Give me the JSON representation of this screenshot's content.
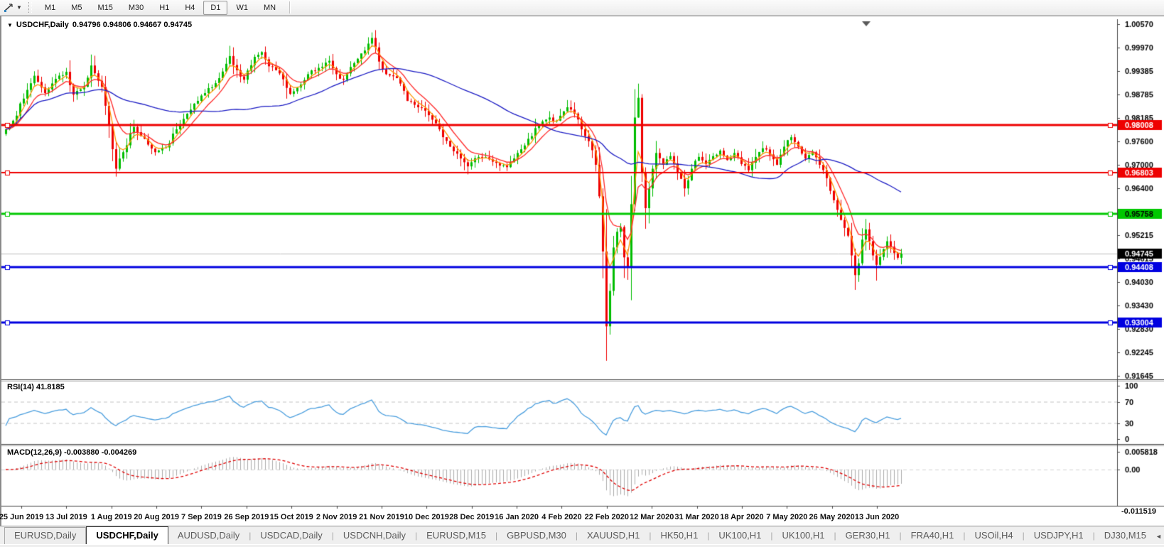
{
  "toolbar": {
    "tool_icon": "line-tool-icon",
    "dropdown_icon": "chevron-down",
    "timeframes": [
      {
        "label": "M1",
        "active": false
      },
      {
        "label": "M5",
        "active": false
      },
      {
        "label": "M15",
        "active": false
      },
      {
        "label": "M30",
        "active": false
      },
      {
        "label": "H1",
        "active": false
      },
      {
        "label": "H4",
        "active": false
      },
      {
        "label": "D1",
        "active": true
      },
      {
        "label": "W1",
        "active": false
      },
      {
        "label": "MN",
        "active": false
      }
    ]
  },
  "chart": {
    "symbol_timeframe": "USDCHF,Daily",
    "ohlc_readout": "0.94796 0.94806 0.94667 0.94745"
  },
  "indicators": {
    "rsi_label": "RSI(14) 41.8185",
    "macd_label": "MACD(12,26,9) -0.003880 -0.004269"
  },
  "chart_data": {
    "type": "candlestick",
    "symbol": "USDCHF",
    "timeframe": "Daily",
    "ohlc_readout": {
      "open": 0.94796,
      "high": 0.94806,
      "low": 0.94667,
      "close": 0.94745
    },
    "y_axis_range": [
      0.91554,
      1.00696
    ],
    "y_ticks": [
      "1.00570",
      "0.99970",
      "0.99385",
      "0.98785",
      "0.98185",
      "0.97600",
      "0.97000",
      "0.96400",
      "0.95215",
      "0.94615",
      "0.94030",
      "0.93430",
      "0.92830",
      "0.92245",
      "0.91645"
    ],
    "x_labels": [
      "25 Jun 2019",
      "13 Jul 2019",
      "1 Aug 2019",
      "20 Aug 2019",
      "7 Sep 2019",
      "26 Sep 2019",
      "15 Oct 2019",
      "2 Nov 2019",
      "21 Nov 2019",
      "10 Dec 2019",
      "28 Dec 2019",
      "16 Jan 2020",
      "4 Feb 2020",
      "22 Feb 2020",
      "12 Mar 2020",
      "31 Mar 2020",
      "18 Apr 2020",
      "7 May 2020",
      "26 May 2020",
      "13 Jun 2020"
    ],
    "h_lines": [
      {
        "price": 0.98008,
        "label": "0.98008",
        "color": "#ee0000",
        "badge_text_color": "#ffffff",
        "width": 3
      },
      {
        "price": 0.96803,
        "label": "0.96803",
        "color": "#ee0000",
        "badge_text_color": "#ffffff",
        "width": 2
      },
      {
        "price": 0.95758,
        "label": "0.95758",
        "color": "#00c800",
        "badge_text_color": "#000000",
        "width": 3
      },
      {
        "price": 0.94408,
        "label": "0.94408",
        "color": "#0000e0",
        "badge_text_color": "#ffffff",
        "width": 3
      },
      {
        "price": 0.93004,
        "label": "0.93004",
        "color": "#0000e0",
        "badge_text_color": "#ffffff",
        "width": 3
      }
    ],
    "current_price": {
      "value": 0.94745,
      "label": "0.94745",
      "line_color": "#bcbcbc",
      "badge_bg": "#000000",
      "badge_fg": "#ffffff"
    },
    "candles": {
      "count": 253,
      "up_color": "#00bd00",
      "down_color": "#ef0000",
      "noise_seed": 7,
      "close_keypoints": [
        [
          0,
          0.979
        ],
        [
          2,
          0.9812
        ],
        [
          5,
          0.9868
        ],
        [
          8,
          0.9926
        ],
        [
          11,
          0.9882
        ],
        [
          14,
          0.9918
        ],
        [
          17,
          0.9936
        ],
        [
          19,
          0.9878
        ],
        [
          22,
          0.9898
        ],
        [
          24,
          0.9952
        ],
        [
          27,
          0.9898
        ],
        [
          29,
          0.98
        ],
        [
          31,
          0.969
        ],
        [
          33,
          0.9732
        ],
        [
          36,
          0.9796
        ],
        [
          39,
          0.9766
        ],
        [
          42,
          0.9732
        ],
        [
          45,
          0.9744
        ],
        [
          48,
          0.979
        ],
        [
          52,
          0.984
        ],
        [
          56,
          0.9882
        ],
        [
          60,
          0.992
        ],
        [
          63,
          0.9976
        ],
        [
          65,
          0.994
        ],
        [
          67,
          0.9916
        ],
        [
          70,
          0.9974
        ],
        [
          72,
          0.9986
        ],
        [
          74,
          0.995
        ],
        [
          77,
          0.9932
        ],
        [
          80,
          0.988
        ],
        [
          82,
          0.9896
        ],
        [
          85,
          0.993
        ],
        [
          88,
          0.9946
        ],
        [
          91,
          0.9964
        ],
        [
          93,
          0.993
        ],
        [
          95,
          0.9916
        ],
        [
          98,
          0.9958
        ],
        [
          101,
          0.999
        ],
        [
          103,
          1.0022
        ],
        [
          105,
          0.9962
        ],
        [
          107,
          0.993
        ],
        [
          110,
          0.992
        ],
        [
          113,
          0.9862
        ],
        [
          116,
          0.9846
        ],
        [
          119,
          0.9826
        ],
        [
          122,
          0.979
        ],
        [
          125,
          0.9746
        ],
        [
          128,
          0.9716
        ],
        [
          130,
          0.9696
        ],
        [
          133,
          0.972
        ],
        [
          136,
          0.9714
        ],
        [
          139,
          0.9698
        ],
        [
          141,
          0.9694
        ],
        [
          144,
          0.973
        ],
        [
          147,
          0.9766
        ],
        [
          150,
          0.98
        ],
        [
          153,
          0.982
        ],
        [
          155,
          0.9812
        ],
        [
          158,
          0.9846
        ],
        [
          160,
          0.983
        ],
        [
          162,
          0.979
        ],
        [
          164,
          0.976
        ],
        [
          166,
          0.97
        ],
        [
          167,
          0.962
        ],
        [
          168,
          0.948
        ],
        [
          169,
          0.929
        ],
        [
          170,
          0.938
        ],
        [
          171,
          0.949
        ],
        [
          172,
          0.953
        ],
        [
          173,
          0.9542
        ],
        [
          174,
          0.9465
        ],
        [
          175,
          0.944
        ],
        [
          176,
          0.96
        ],
        [
          177,
          0.982
        ],
        [
          178,
          0.987
        ],
        [
          179,
          0.968
        ],
        [
          180,
          0.959
        ],
        [
          181,
          0.964
        ],
        [
          182,
          0.969
        ],
        [
          183,
          0.973
        ],
        [
          185,
          0.97
        ],
        [
          187,
          0.9722
        ],
        [
          189,
          0.9682
        ],
        [
          191,
          0.964
        ],
        [
          193,
          0.969
        ],
        [
          195,
          0.972
        ],
        [
          197,
          0.9702
        ],
        [
          199,
          0.9722
        ],
        [
          201,
          0.9736
        ],
        [
          203,
          0.9712
        ],
        [
          205,
          0.973
        ],
        [
          207,
          0.9702
        ],
        [
          209,
          0.9686
        ],
        [
          211,
          0.972
        ],
        [
          213,
          0.9742
        ],
        [
          215,
          0.9726
        ],
        [
          217,
          0.97
        ],
        [
          219,
          0.9746
        ],
        [
          221,
          0.977
        ],
        [
          223,
          0.9746
        ],
        [
          225,
          0.9716
        ],
        [
          227,
          0.9732
        ],
        [
          229,
          0.97
        ],
        [
          231,
          0.9666
        ],
        [
          233,
          0.961
        ],
        [
          235,
          0.956
        ],
        [
          237,
          0.952
        ],
        [
          238,
          0.947
        ],
        [
          239,
          0.942
        ],
        [
          240,
          0.945
        ],
        [
          241,
          0.951
        ],
        [
          242,
          0.9536
        ],
        [
          243,
          0.9506
        ],
        [
          244,
          0.947
        ],
        [
          245,
          0.9446
        ],
        [
          246,
          0.9466
        ],
        [
          247,
          0.9486
        ],
        [
          248,
          0.9506
        ],
        [
          249,
          0.9492
        ],
        [
          250,
          0.9476
        ],
        [
          251,
          0.9464
        ],
        [
          252,
          0.94745
        ]
      ],
      "overrides": {
        "31": {
          "low": 0.9676
        },
        "63": {
          "high": 1.0002
        },
        "103": {
          "high": 1.0036
        },
        "169": {
          "low": 0.9218
        },
        "175": {
          "low": 0.9408
        },
        "177": {
          "high": 0.9892
        },
        "178": {
          "high": 0.9906
        },
        "239": {
          "low": 0.94
        },
        "245": {
          "low": 0.9406
        }
      }
    },
    "moving_averages": [
      {
        "type": "ema",
        "period": 4,
        "color": "#ff9500",
        "style": "solid"
      },
      {
        "type": "ema",
        "period": 9,
        "color": "#ff2a2a",
        "style": "solid"
      },
      {
        "type": "sma",
        "period": 50,
        "color": "#1c1cc4",
        "style": "solid"
      }
    ],
    "rsi": {
      "period": 14,
      "value": 41.8185,
      "label": "RSI(14) 41.8185",
      "levels": [
        30,
        70
      ],
      "range": [
        0,
        100
      ],
      "axis_ticks": [
        "100",
        "70",
        "30",
        "0"
      ],
      "color": "#4a9ede"
    },
    "macd": {
      "fast": 12,
      "slow": 26,
      "signal": 9,
      "values": [
        -0.00388,
        -0.004269
      ],
      "label": "MACD(12,26,9) -0.003880 -0.004269",
      "axis_ticks": [
        "0.005818",
        "0.00"
      ],
      "bottom_tick": "-0.011519",
      "hist_color": "#ababab",
      "signal_color": "#e00000"
    }
  },
  "tabbar": {
    "scroll_left": "◄",
    "scroll_right": "►",
    "tabs": [
      {
        "label": "EURUSD,Daily",
        "active": false
      },
      {
        "label": "USDCHF,Daily",
        "active": true
      },
      {
        "label": "AUDUSD,Daily",
        "active": false
      },
      {
        "label": "USDCAD,Daily",
        "active": false
      },
      {
        "label": "USDCNH,Daily",
        "active": false
      },
      {
        "label": "EURUSD,M15",
        "active": false
      },
      {
        "label": "GBPUSD,M30",
        "active": false
      },
      {
        "label": "XAUUSD,H1",
        "active": false
      },
      {
        "label": "HK50,H1",
        "active": false
      },
      {
        "label": "UK100,H1",
        "active": false
      },
      {
        "label": "UK100,H1",
        "active": false
      },
      {
        "label": "GER30,H1",
        "active": false
      },
      {
        "label": "FRA40,H1",
        "active": false
      },
      {
        "label": "USOil,H4",
        "active": false
      },
      {
        "label": "USDJPY,H1",
        "active": false
      },
      {
        "label": "DJ30,M15",
        "active": false
      }
    ]
  }
}
